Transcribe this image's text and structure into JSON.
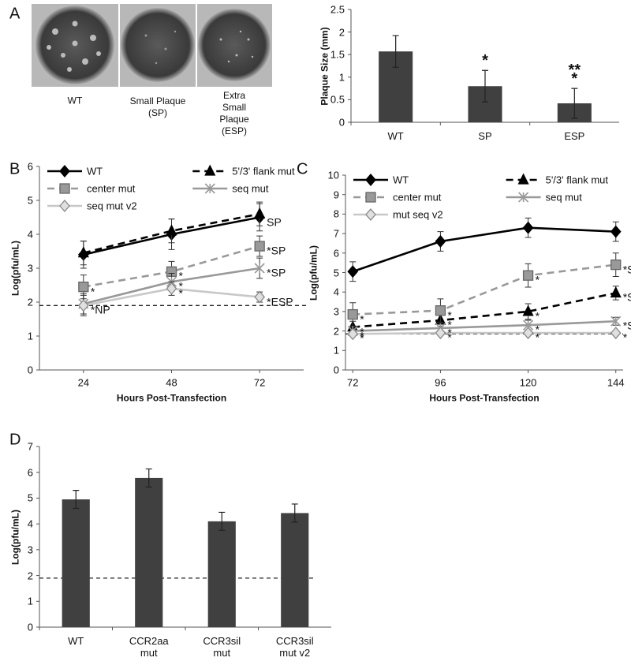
{
  "figure": {
    "panel_labels": [
      "A",
      "B",
      "C",
      "D"
    ],
    "photo_captions": [
      "WT",
      "Small Plaque (SP)",
      "Extra Small Plaque (ESP)"
    ]
  },
  "chart_data": [
    {
      "type": "bar",
      "ylabel": "Plaque Size (mm)",
      "categories": [
        "WT",
        "SP",
        "ESP"
      ],
      "values": [
        1.57,
        0.8,
        0.42
      ],
      "errors": [
        0.35,
        0.35,
        0.33
      ],
      "point_labels": [
        null,
        "*",
        "**\n*"
      ],
      "color": "#404040",
      "ylim": [
        0,
        2.5
      ],
      "yticks": [
        0,
        0.5,
        1,
        1.5,
        2,
        2.5
      ]
    },
    {
      "type": "line",
      "xlabel": "Hours Post-Transfection",
      "ylabel": "Log(pfu/mL)",
      "x": [
        24,
        48,
        72
      ],
      "xlim": [
        12,
        84
      ],
      "xticks": [
        24,
        48,
        72
      ],
      "ylim": [
        0,
        6
      ],
      "yticks": [
        0,
        1,
        2,
        3,
        4,
        5,
        6
      ],
      "reference_line": 1.9,
      "series": [
        {
          "name": "WT",
          "color": "#000000",
          "dashed": false,
          "marker": "diamond",
          "marker_fill": "#000000",
          "values": [
            3.4,
            4.0,
            4.5
          ],
          "errors": [
            0.4,
            0.45,
            0.4
          ],
          "point_labels": [
            null,
            null,
            "SP"
          ]
        },
        {
          "name": "5'/3' flank mut",
          "color": "#000000",
          "dashed": true,
          "marker": "triangle",
          "marker_fill": "#000000",
          "values": [
            3.45,
            4.1,
            4.6
          ],
          "errors": [
            0.35,
            0.35,
            0.35
          ],
          "point_labels": [
            null,
            null,
            null
          ]
        },
        {
          "name": "center mut",
          "color": "#999999",
          "dashed": true,
          "marker": "square",
          "marker_fill": "#999999",
          "values": [
            2.45,
            2.9,
            3.65
          ],
          "errors": [
            0.35,
            0.3,
            0.3
          ],
          "point_labels": [
            "*",
            "*",
            "*SP"
          ]
        },
        {
          "name": "seq mut",
          "color": "#999999",
          "dashed": false,
          "marker": "star",
          "marker_fill": "#999999",
          "values": [
            1.95,
            2.6,
            3.0
          ],
          "errors": [
            0.3,
            0.25,
            0.3
          ],
          "point_labels": [
            null,
            "*",
            "*SP"
          ]
        },
        {
          "name": "seq mut v2",
          "color": "#c8c8c8",
          "dashed": false,
          "marker": "diamond",
          "marker_fill": "#e0e0e0",
          "values": [
            1.9,
            2.4,
            2.15
          ],
          "errors": [
            0.3,
            0.2,
            0.15
          ],
          "point_labels": [
            "*NP",
            "*",
            "*ESP"
          ]
        }
      ]
    },
    {
      "type": "line",
      "xlabel": "Hours Post-Transfection",
      "ylabel": "Log(pfu/mL)",
      "x": [
        72,
        96,
        120,
        144
      ],
      "xlim": [
        70,
        146
      ],
      "xticks": [
        72,
        96,
        120,
        144
      ],
      "ylim": [
        0,
        10
      ],
      "yticks": [
        0,
        1,
        2,
        3,
        4,
        5,
        6,
        7,
        8,
        9,
        10
      ],
      "reference_line": 1.85,
      "series": [
        {
          "name": "WT",
          "color": "#000000",
          "dashed": false,
          "marker": "diamond",
          "marker_fill": "#000000",
          "values": [
            5.05,
            6.6,
            7.3,
            7.1
          ],
          "errors": [
            0.5,
            0.5,
            0.5,
            0.5
          ],
          "point_labels": [
            null,
            null,
            null,
            null
          ]
        },
        {
          "name": "5'/3' flank mut",
          "color": "#000000",
          "dashed": true,
          "marker": "triangle",
          "marker_fill": "#000000",
          "values": [
            2.2,
            2.55,
            3.0,
            3.95
          ],
          "errors": [
            0.3,
            0.3,
            0.4,
            0.35
          ],
          "point_labels": [
            "*",
            "*",
            "*",
            "*SP"
          ]
        },
        {
          "name": "center mut",
          "color": "#999999",
          "dashed": true,
          "marker": "square",
          "marker_fill": "#999999",
          "values": [
            2.85,
            3.05,
            4.85,
            5.4
          ],
          "errors": [
            0.6,
            0.6,
            0.6,
            0.6
          ],
          "point_labels": [
            "*",
            "*",
            "*",
            "*SP"
          ]
        },
        {
          "name": "seq mut",
          "color": "#999999",
          "dashed": false,
          "marker": "star",
          "marker_fill": "#999999",
          "values": [
            2.0,
            2.15,
            2.3,
            2.5
          ],
          "errors": [
            0.2,
            0.2,
            0.25,
            0.2
          ],
          "point_labels": [
            "*",
            "*",
            "*",
            "*SP"
          ]
        },
        {
          "name": "mut seq v2",
          "color": "#c8c8c8",
          "dashed": false,
          "marker": "diamond",
          "marker_fill": "#e0e0e0",
          "values": [
            1.85,
            1.9,
            1.9,
            1.9
          ],
          "errors": [
            0.1,
            0.1,
            0.1,
            0.1
          ],
          "point_labels": [
            "*",
            "*",
            "*",
            "*"
          ]
        }
      ]
    },
    {
      "type": "bar",
      "ylabel": "Log(pfu/mL)",
      "categories": [
        "WT",
        "CCR2aa mut",
        "CCR3sil mut",
        "CCR3sil mut v2"
      ],
      "values": [
        4.95,
        5.78,
        4.1,
        4.42
      ],
      "errors": [
        0.35,
        0.35,
        0.35,
        0.35
      ],
      "color": "#404040",
      "ylim": [
        0,
        7
      ],
      "yticks": [
        0,
        1,
        2,
        3,
        4,
        5,
        6,
        7
      ],
      "reference_line": 1.9
    }
  ]
}
